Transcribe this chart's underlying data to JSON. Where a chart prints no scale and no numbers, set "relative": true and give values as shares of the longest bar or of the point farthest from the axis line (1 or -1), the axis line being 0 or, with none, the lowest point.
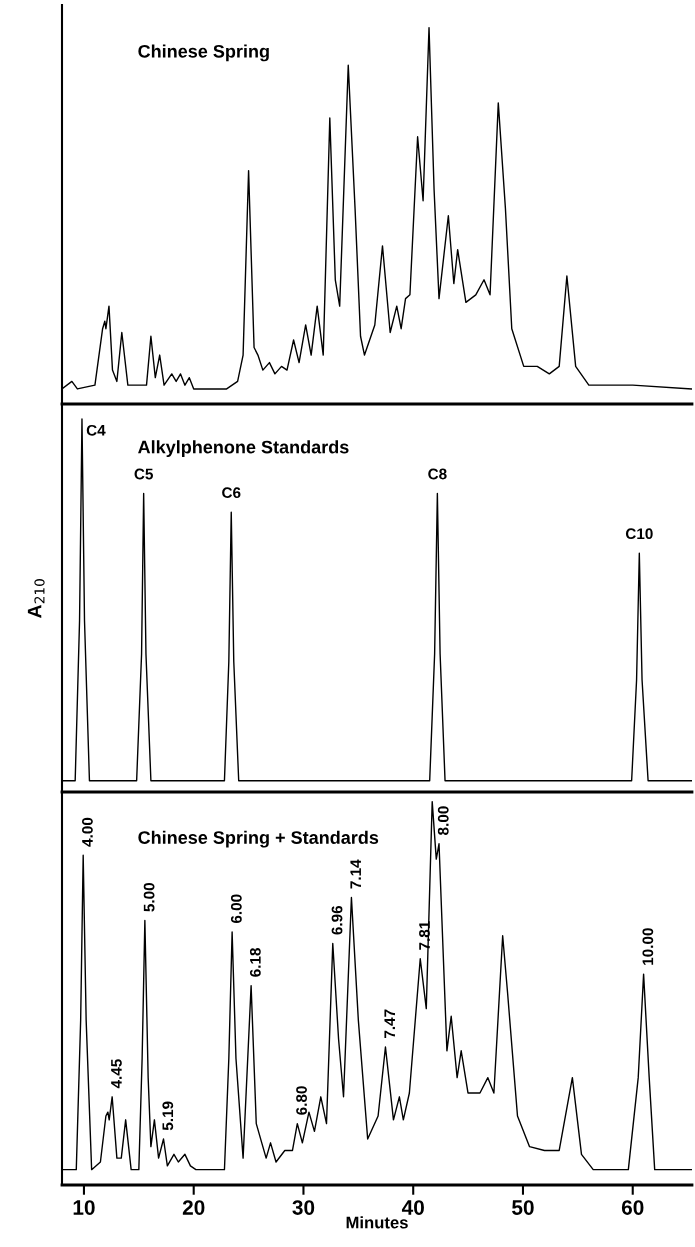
{
  "chart_data": [
    {
      "type": "line",
      "title": "Chinese Spring",
      "relative": true,
      "tick_labels": false,
      "xlim": [
        8,
        65.4
      ],
      "grid": false,
      "legend": false,
      "series": [
        {
          "color": "#000000",
          "x": [
            8.0,
            8.9,
            9.4,
            11.0,
            11.7,
            11.9,
            12.0,
            12.28,
            12.6,
            13.0,
            13.45,
            14.0,
            15.7,
            16.1,
            16.5,
            16.9,
            17.3,
            18.0,
            18.4,
            18.8,
            19.2,
            19.6,
            20.0,
            23.0,
            24.0,
            24.5,
            25.0,
            25.5,
            25.85,
            26.3,
            26.9,
            27.4,
            28.0,
            28.5,
            29.1,
            29.6,
            30.2,
            30.7,
            31.25,
            31.8,
            32.4,
            32.9,
            33.3,
            34.08,
            34.7,
            35.2,
            35.56,
            36.5,
            37.2,
            37.9,
            38.5,
            38.9,
            39.3,
            39.7,
            40.4,
            40.9,
            41.44,
            41.9,
            42.35,
            43.2,
            43.7,
            44.05,
            44.8,
            45.7,
            46.45,
            47.0,
            47.75,
            48.4,
            48.98,
            50.07,
            51.3,
            52.4,
            53.3,
            54.0,
            54.8,
            56.0,
            60.0,
            65.4
          ],
          "values": [
            0.04,
            0.06,
            0.04,
            0.05,
            0.2,
            0.22,
            0.2,
            0.26,
            0.09,
            0.06,
            0.19,
            0.05,
            0.05,
            0.18,
            0.07,
            0.13,
            0.05,
            0.08,
            0.06,
            0.08,
            0.05,
            0.07,
            0.04,
            0.04,
            0.06,
            0.13,
            0.62,
            0.15,
            0.13,
            0.09,
            0.11,
            0.08,
            0.1,
            0.09,
            0.17,
            0.11,
            0.21,
            0.13,
            0.26,
            0.13,
            0.76,
            0.33,
            0.26,
            0.9,
            0.52,
            0.18,
            0.13,
            0.21,
            0.42,
            0.19,
            0.26,
            0.2,
            0.28,
            0.29,
            0.71,
            0.54,
            1.0,
            0.57,
            0.28,
            0.5,
            0.32,
            0.41,
            0.27,
            0.29,
            0.33,
            0.29,
            0.8,
            0.52,
            0.2,
            0.1,
            0.1,
            0.08,
            0.1,
            0.34,
            0.1,
            0.05,
            0.05,
            0.04
          ]
        }
      ]
    },
    {
      "type": "line",
      "title": "Alkylphenone Standards",
      "ylabel": "A$_{210}$",
      "relative": true,
      "tick_labels": false,
      "xlim": [
        8,
        65.4
      ],
      "grid": false,
      "legend": false,
      "series": [
        {
          "color": "#000000",
          "x": [
            8.0,
            9.2,
            9.6,
            9.82,
            10.05,
            10.5,
            12.0,
            14.8,
            15.25,
            15.44,
            15.65,
            16.1,
            20.0,
            22.8,
            23.2,
            23.42,
            23.65,
            24.1,
            30.0,
            36.0,
            41.5,
            41.95,
            42.2,
            42.45,
            42.9,
            48.0,
            55.0,
            59.9,
            60.35,
            60.6,
            60.85,
            61.4,
            65.4
          ],
          "values": [
            0.03,
            0.03,
            0.46,
            1.0,
            0.46,
            0.03,
            0.03,
            0.03,
            0.37,
            0.8,
            0.37,
            0.03,
            0.03,
            0.03,
            0.35,
            0.75,
            0.35,
            0.03,
            0.03,
            0.03,
            0.03,
            0.37,
            0.8,
            0.37,
            0.03,
            0.03,
            0.03,
            0.03,
            0.3,
            0.64,
            0.3,
            0.03,
            0.03
          ]
        }
      ],
      "annotations": [
        {
          "text": "C4",
          "x": 9.82,
          "y": 1.0
        },
        {
          "text": "C5",
          "x": 15.44,
          "y": 0.8
        },
        {
          "text": "C6",
          "x": 23.42,
          "y": 0.75
        },
        {
          "text": "C8",
          "x": 42.2,
          "y": 0.8
        },
        {
          "text": "C10",
          "x": 60.6,
          "y": 0.64
        }
      ]
    },
    {
      "type": "line",
      "title": "Chinese Spring + Standards",
      "xlabel": "Minutes",
      "relative": true,
      "tick_labels": "x",
      "xlim": [
        8,
        65.4
      ],
      "xticks": [
        10,
        20,
        30,
        40,
        50,
        60
      ],
      "grid": false,
      "legend": false,
      "series": [
        {
          "color": "#000000",
          "x": [
            8.0,
            9.3,
            9.7,
            9.93,
            10.2,
            10.7,
            11.5,
            12.0,
            12.18,
            12.3,
            12.57,
            13.0,
            13.4,
            13.8,
            14.3,
            15.0,
            15.3,
            15.55,
            15.85,
            16.1,
            16.42,
            16.8,
            17.25,
            17.6,
            18.2,
            18.6,
            19.2,
            19.7,
            20.2,
            22.8,
            23.2,
            23.5,
            23.85,
            24.5,
            25.23,
            25.7,
            26.2,
            26.6,
            27.0,
            27.5,
            28.3,
            29.0,
            29.44,
            29.9,
            30.5,
            31.0,
            31.58,
            32.1,
            32.67,
            33.2,
            33.65,
            34.37,
            35.0,
            35.85,
            36.8,
            37.47,
            38.2,
            38.74,
            39.1,
            39.65,
            40.64,
            41.19,
            41.73,
            42.1,
            42.35,
            43.07,
            43.46,
            44.0,
            44.37,
            44.99,
            46.08,
            46.8,
            47.35,
            48.15,
            48.6,
            49.5,
            50.6,
            51.96,
            53.3,
            54.5,
            55.33,
            56.4,
            59.6,
            60.5,
            60.99,
            61.5,
            62.0,
            65.4
          ],
          "values": [
            0.04,
            0.04,
            0.43,
            0.86,
            0.43,
            0.04,
            0.06,
            0.18,
            0.19,
            0.17,
            0.23,
            0.07,
            0.07,
            0.17,
            0.04,
            0.04,
            0.33,
            0.69,
            0.28,
            0.1,
            0.17,
            0.07,
            0.12,
            0.05,
            0.08,
            0.06,
            0.08,
            0.05,
            0.04,
            0.04,
            0.33,
            0.66,
            0.33,
            0.07,
            0.52,
            0.16,
            0.11,
            0.07,
            0.11,
            0.06,
            0.09,
            0.09,
            0.16,
            0.11,
            0.19,
            0.14,
            0.23,
            0.16,
            0.63,
            0.38,
            0.23,
            0.75,
            0.43,
            0.12,
            0.18,
            0.36,
            0.17,
            0.23,
            0.17,
            0.24,
            0.59,
            0.46,
            1.0,
            0.85,
            0.89,
            0.35,
            0.44,
            0.28,
            0.35,
            0.24,
            0.24,
            0.28,
            0.24,
            0.65,
            0.5,
            0.18,
            0.1,
            0.09,
            0.09,
            0.28,
            0.08,
            0.04,
            0.04,
            0.28,
            0.55,
            0.28,
            0.04,
            0.04
          ]
        }
      ],
      "annotations": [
        {
          "text": "4.00",
          "x": 9.93,
          "y": 0.86
        },
        {
          "text": "4.45",
          "x": 12.57,
          "y": 0.23
        },
        {
          "text": "5.00",
          "x": 15.55,
          "y": 0.69
        },
        {
          "text": "5.19",
          "x": 17.25,
          "y": 0.12
        },
        {
          "text": "6.00",
          "x": 23.5,
          "y": 0.66
        },
        {
          "text": "6.18",
          "x": 25.23,
          "y": 0.52
        },
        {
          "text": "6.80",
          "x": 29.44,
          "y": 0.16
        },
        {
          "text": "6.96",
          "x": 32.67,
          "y": 0.63
        },
        {
          "text": "7.14",
          "x": 34.37,
          "y": 0.75
        },
        {
          "text": "7.47",
          "x": 37.47,
          "y": 0.36
        },
        {
          "text": "7.81",
          "x": 40.64,
          "y": 0.59
        },
        {
          "text": "8.00",
          "x": 42.35,
          "y": 0.89
        },
        {
          "text": "10.00",
          "x": 60.99,
          "y": 0.55
        }
      ]
    }
  ]
}
